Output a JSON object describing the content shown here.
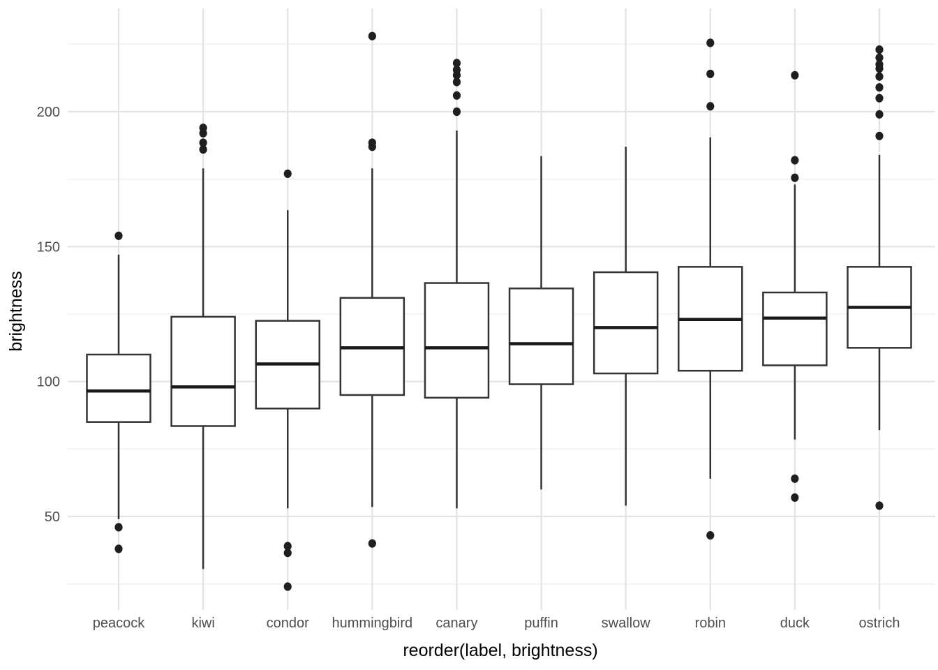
{
  "figure": {
    "background": "#ffffff",
    "x_axis_title": "reorder(label, brightness)",
    "y_axis_title": "brightness"
  },
  "chart_data": {
    "type": "boxplot",
    "title": "",
    "xlabel": "reorder(label, brightness)",
    "ylabel": "brightness",
    "categories": [
      "peacock",
      "kiwi",
      "condor",
      "hummingbird",
      "canary",
      "puffin",
      "swallow",
      "robin",
      "duck",
      "ostrich"
    ],
    "y_ticks": [
      50,
      100,
      150,
      200
    ],
    "y_minor_ticks": [
      25,
      75,
      125,
      175,
      225
    ],
    "ylim": [
      15,
      238
    ],
    "grid": "major+minor, no axis lines, no ticks (ggplot minimal theme)",
    "legend": "none",
    "boxes": [
      {
        "label": "peacock",
        "whisker_low": 49,
        "q1": 85,
        "median": 96.5,
        "q3": 110,
        "whisker_high": 147,
        "outliers_high": [
          154
        ],
        "outliers_low": [
          46,
          38
        ]
      },
      {
        "label": "kiwi",
        "whisker_low": 30.5,
        "q1": 83.5,
        "median": 98,
        "q3": 124,
        "whisker_high": 179,
        "outliers_high": [
          194,
          192,
          188.5,
          186
        ],
        "outliers_low": []
      },
      {
        "label": "condor",
        "whisker_low": 53,
        "q1": 90,
        "median": 106.5,
        "q3": 122.5,
        "whisker_high": 163.5,
        "outliers_high": [
          177
        ],
        "outliers_low": [
          39,
          36.5,
          24
        ]
      },
      {
        "label": "hummingbird",
        "whisker_low": 53.5,
        "q1": 95,
        "median": 112.5,
        "q3": 131,
        "whisker_high": 179,
        "outliers_high": [
          228,
          188.5,
          187
        ],
        "outliers_low": [
          40
        ]
      },
      {
        "label": "canary",
        "whisker_low": 53,
        "q1": 94,
        "median": 112.5,
        "q3": 136.5,
        "whisker_high": 193,
        "outliers_high": [
          218,
          215.5,
          213.5,
          211,
          206,
          200
        ],
        "outliers_low": []
      },
      {
        "label": "puffin",
        "whisker_low": 60,
        "q1": 99,
        "median": 114,
        "q3": 134.5,
        "whisker_high": 183.5,
        "outliers_high": [],
        "outliers_low": []
      },
      {
        "label": "swallow",
        "whisker_low": 54,
        "q1": 103,
        "median": 120,
        "q3": 140.5,
        "whisker_high": 187,
        "outliers_high": [],
        "outliers_low": []
      },
      {
        "label": "robin",
        "whisker_low": 64,
        "q1": 104,
        "median": 123,
        "q3": 142.5,
        "whisker_high": 190.5,
        "outliers_high": [
          225.5,
          214,
          202
        ],
        "outliers_low": [
          43
        ]
      },
      {
        "label": "duck",
        "whisker_low": 78.5,
        "q1": 106,
        "median": 123.5,
        "q3": 133,
        "whisker_high": 173,
        "outliers_high": [
          213.5,
          182,
          175.5
        ],
        "outliers_low": [
          64,
          57
        ]
      },
      {
        "label": "ostrich",
        "whisker_low": 82,
        "q1": 112.5,
        "median": 127.5,
        "q3": 142.5,
        "whisker_high": 184,
        "outliers_high": [
          223,
          220,
          217.5,
          216,
          213,
          209,
          205,
          199,
          191
        ],
        "outliers_low": [
          54
        ]
      }
    ],
    "style": {
      "box_fill": "#ffffff",
      "box_stroke": "#333333",
      "median_stroke": "#1a1a1a",
      "outlier_color": "#1f1f1f",
      "grid_major": "#e3e3e3",
      "grid_minor": "#f1f1f1",
      "tick_label_color": "#4d4d4d",
      "axis_title_color": "#000000"
    }
  }
}
